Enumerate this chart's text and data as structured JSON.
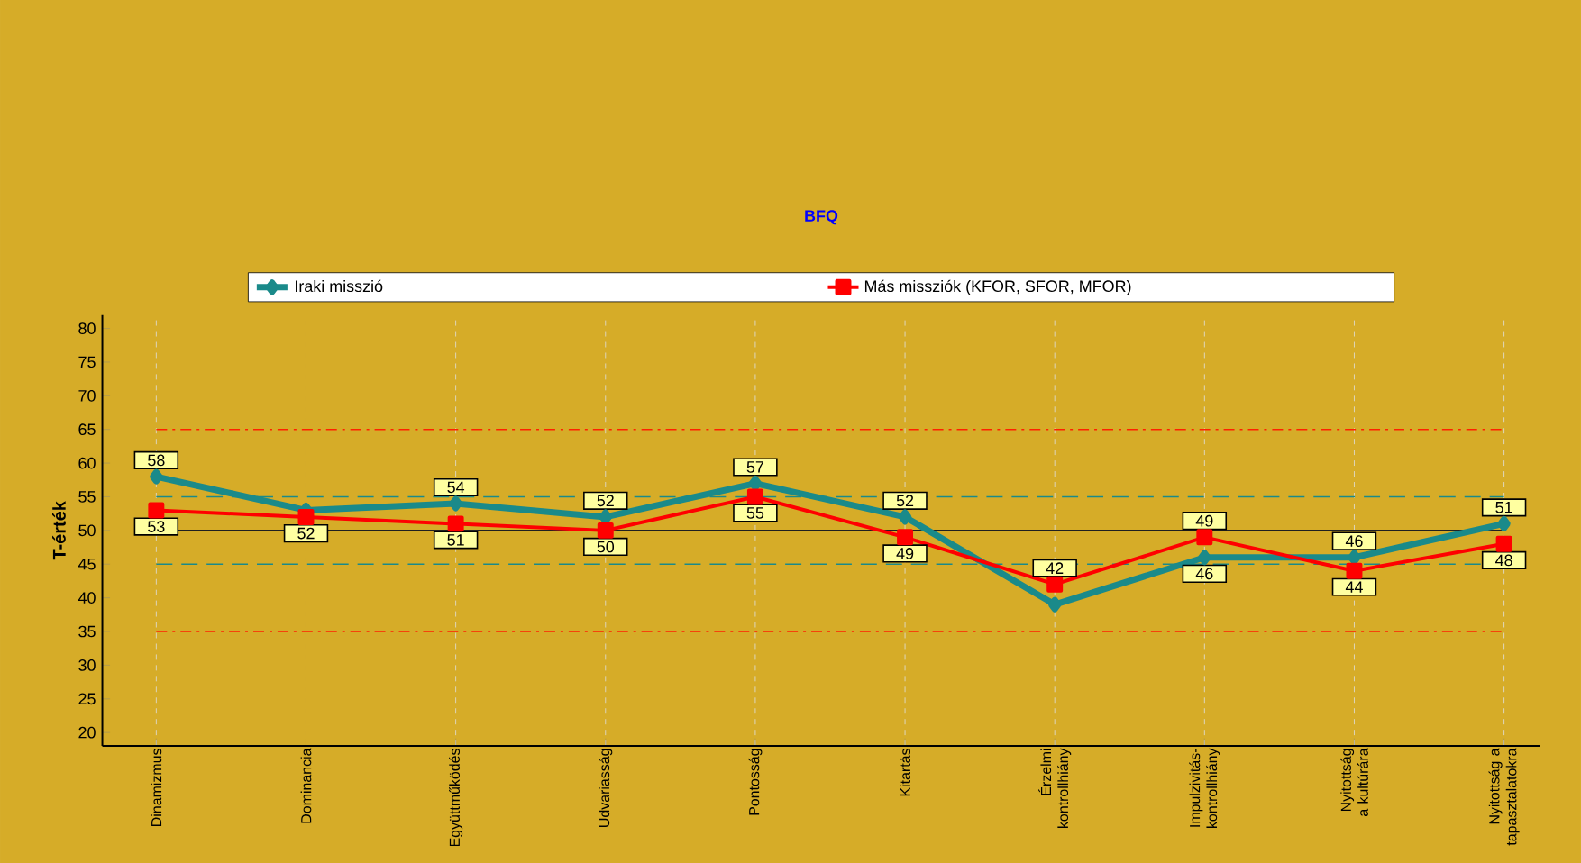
{
  "chart_data": {
    "type": "line",
    "title": "BFQ",
    "ylabel": "T-érték",
    "categories": [
      "Dinamizmus",
      "Dominancia",
      "Együttműködés",
      "Udvariasság",
      "Pontosság",
      "Kitartás",
      "Érzelmi kontrollhiány",
      "Impulzivitás-kontrollhiány",
      "Nyitottság a kultúrára",
      "Nyitottság a tapasztalatokra"
    ],
    "series": [
      {
        "name": "Iraki misszió",
        "color": "#1a8a8a",
        "marker": "diamond",
        "values": [
          58,
          53,
          54,
          52,
          57,
          52,
          39,
          46,
          46,
          51
        ],
        "value_labels": [
          "58",
          null,
          "54",
          "52",
          "57",
          "52",
          null,
          "46",
          "46",
          "51"
        ]
      },
      {
        "name": "Más missziók (KFOR, SFOR, MFOR)",
        "color": "#ff0000",
        "marker": "square",
        "values": [
          53,
          52,
          51,
          50,
          55,
          49,
          42,
          49,
          44,
          48
        ],
        "value_labels": [
          "53",
          "52",
          "51",
          "50",
          "55",
          "49",
          "42",
          "49",
          "44",
          "48"
        ]
      }
    ],
    "ylim": [
      18,
      82
    ],
    "yticks": [
      20,
      25,
      30,
      35,
      40,
      45,
      50,
      55,
      60,
      65,
      70,
      75,
      80
    ],
    "grid": "x",
    "legend": "top",
    "ref_lines": [
      {
        "axis": "y",
        "value": 65,
        "color": "#ff2000",
        "line_style": "dashdot"
      },
      {
        "axis": "y",
        "value": 55,
        "color": "#1a8a8a",
        "line_style": "dashed"
      },
      {
        "axis": "y",
        "value": 50,
        "color": "#202020",
        "line_style": "solid"
      },
      {
        "axis": "y",
        "value": 45,
        "color": "#1a8a8a",
        "line_style": "dashed"
      },
      {
        "axis": "y",
        "value": 35,
        "color": "#ff2000",
        "line_style": "dashdot"
      }
    ]
  }
}
